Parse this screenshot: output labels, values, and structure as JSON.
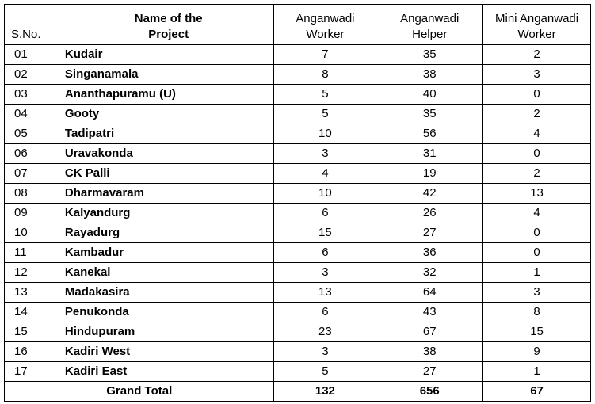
{
  "table": {
    "headers": [
      "S.No.",
      "Name of the Project",
      "Anganwadi Worker",
      "Anganwadi Helper",
      "Mini Anganwadi Worker"
    ],
    "rows": [
      [
        "01",
        "Kudair",
        7,
        35,
        2
      ],
      [
        "02",
        "Singanamala",
        8,
        38,
        3
      ],
      [
        "03",
        "Ananthapuramu (U)",
        5,
        40,
        0
      ],
      [
        "04",
        "Gooty",
        5,
        35,
        2
      ],
      [
        "05",
        "Tadipatri",
        10,
        56,
        4
      ],
      [
        "06",
        "Uravakonda",
        3,
        31,
        0
      ],
      [
        "07",
        "CK Palli",
        4,
        19,
        2
      ],
      [
        "08",
        "Dharmavaram",
        10,
        42,
        13
      ],
      [
        "09",
        "Kalyandurg",
        6,
        26,
        4
      ],
      [
        "10",
        "Rayadurg",
        15,
        27,
        0
      ],
      [
        "11",
        "Kambadur",
        6,
        36,
        0
      ],
      [
        "12",
        "Kanekal",
        3,
        32,
        1
      ],
      [
        "13",
        "Madakasira",
        13,
        64,
        3
      ],
      [
        "14",
        "Penukonda",
        6,
        43,
        8
      ],
      [
        "15",
        "Hindupuram",
        23,
        67,
        15
      ],
      [
        "16",
        "Kadiri West",
        3,
        38,
        9
      ],
      [
        "17",
        "Kadiri East",
        5,
        27,
        1
      ]
    ],
    "total": {
      "label": "Grand Total",
      "values": [
        132,
        656,
        67
      ]
    }
  }
}
